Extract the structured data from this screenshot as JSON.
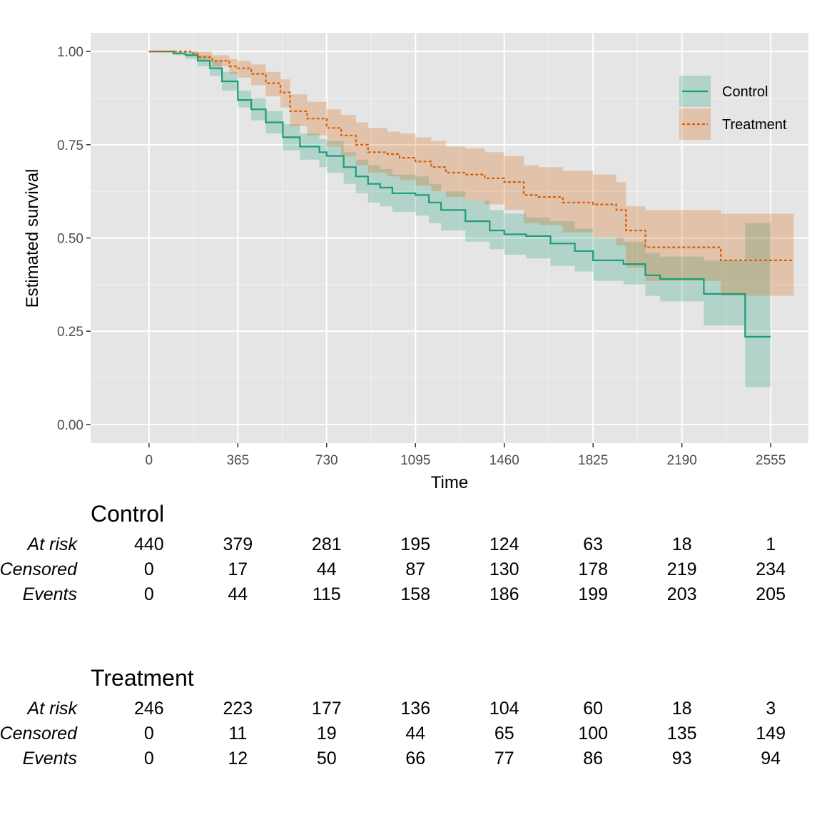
{
  "chart_data": {
    "type": "line",
    "title": "",
    "xlabel": "Time",
    "ylabel": "Estimated survival",
    "xlim": [
      -240,
      2710
    ],
    "ylim": [
      -0.05,
      1.05
    ],
    "x_ticks": [
      0,
      365,
      730,
      1095,
      1460,
      1825,
      2190,
      2555
    ],
    "x_tick_labels": [
      "0",
      "365",
      "730",
      "1095",
      "1460",
      "1825",
      "2190",
      "2555"
    ],
    "y_ticks": [
      0,
      0.25,
      0.5,
      0.75,
      1
    ],
    "y_tick_labels": [
      "0.00",
      "0.25",
      "0.50",
      "0.75",
      "1.00"
    ],
    "grid": true,
    "legend_position": "top-right",
    "series": [
      {
        "name": "Control",
        "color": "#1b9e77",
        "line_style": "solid",
        "x": [
          0,
          50,
          100,
          150,
          200,
          250,
          300,
          365,
          420,
          480,
          550,
          620,
          700,
          730,
          800,
          850,
          900,
          950,
          1000,
          1095,
          1150,
          1200,
          1300,
          1400,
          1460,
          1550,
          1650,
          1750,
          1825,
          1950,
          2040,
          2100,
          2190,
          2280,
          2450,
          2555
        ],
        "y": [
          1.0,
          1.0,
          0.995,
          0.99,
          0.975,
          0.955,
          0.92,
          0.87,
          0.845,
          0.81,
          0.77,
          0.745,
          0.73,
          0.72,
          0.69,
          0.665,
          0.645,
          0.635,
          0.62,
          0.615,
          0.595,
          0.575,
          0.545,
          0.52,
          0.51,
          0.505,
          0.485,
          0.465,
          0.44,
          0.43,
          0.4,
          0.39,
          0.39,
          0.35,
          0.235,
          0.235
        ],
        "lower": [
          1.0,
          1.0,
          0.99,
          0.98,
          0.96,
          0.935,
          0.895,
          0.85,
          0.815,
          0.78,
          0.735,
          0.71,
          0.69,
          0.675,
          0.645,
          0.62,
          0.595,
          0.585,
          0.57,
          0.56,
          0.54,
          0.52,
          0.49,
          0.47,
          0.455,
          0.445,
          0.425,
          0.41,
          0.385,
          0.375,
          0.345,
          0.33,
          0.33,
          0.265,
          0.1,
          0.1
        ],
        "upper": [
          1.0,
          1.0,
          1.0,
          1.0,
          0.99,
          0.975,
          0.945,
          0.895,
          0.875,
          0.84,
          0.805,
          0.78,
          0.765,
          0.76,
          0.73,
          0.71,
          0.695,
          0.685,
          0.67,
          0.665,
          0.645,
          0.625,
          0.6,
          0.575,
          0.565,
          0.555,
          0.545,
          0.525,
          0.5,
          0.49,
          0.46,
          0.45,
          0.45,
          0.44,
          0.54,
          0.54
        ]
      },
      {
        "name": "Treatment",
        "color": "#d95f02",
        "line_style": "dashed",
        "x": [
          0,
          100,
          170,
          200,
          260,
          330,
          365,
          420,
          480,
          540,
          580,
          650,
          730,
          790,
          850,
          900,
          980,
          1030,
          1095,
          1160,
          1220,
          1300,
          1380,
          1460,
          1540,
          1600,
          1700,
          1825,
          1920,
          1960,
          2040,
          2190,
          2350,
          2555,
          2650
        ],
        "y": [
          1.0,
          1.0,
          0.995,
          0.985,
          0.975,
          0.96,
          0.955,
          0.94,
          0.915,
          0.89,
          0.84,
          0.82,
          0.795,
          0.775,
          0.75,
          0.73,
          0.725,
          0.715,
          0.705,
          0.69,
          0.675,
          0.67,
          0.66,
          0.65,
          0.615,
          0.61,
          0.595,
          0.59,
          0.575,
          0.52,
          0.475,
          0.475,
          0.44,
          0.44,
          0.44
        ],
        "lower": [
          1.0,
          1.0,
          0.99,
          0.975,
          0.96,
          0.94,
          0.93,
          0.91,
          0.88,
          0.85,
          0.8,
          0.775,
          0.745,
          0.72,
          0.695,
          0.675,
          0.665,
          0.655,
          0.64,
          0.625,
          0.61,
          0.6,
          0.59,
          0.575,
          0.54,
          0.535,
          0.515,
          0.5,
          0.48,
          0.42,
          0.385,
          0.385,
          0.345,
          0.345,
          0.345
        ],
        "upper": [
          1.0,
          1.0,
          1.0,
          1.0,
          0.99,
          0.98,
          0.975,
          0.965,
          0.945,
          0.925,
          0.885,
          0.865,
          0.845,
          0.83,
          0.81,
          0.795,
          0.785,
          0.78,
          0.77,
          0.76,
          0.745,
          0.74,
          0.73,
          0.72,
          0.695,
          0.69,
          0.68,
          0.67,
          0.65,
          0.585,
          0.575,
          0.575,
          0.565,
          0.565,
          0.565
        ]
      }
    ]
  },
  "risk_tables": [
    {
      "title": "Control",
      "rows": [
        {
          "label": "At risk",
          "values": [
            "440",
            "379",
            "281",
            "195",
            "124",
            "63",
            "18",
            "1"
          ]
        },
        {
          "label": "Censored",
          "values": [
            "0",
            "17",
            "44",
            "87",
            "130",
            "178",
            "219",
            "234"
          ]
        },
        {
          "label": "Events",
          "values": [
            "0",
            "44",
            "115",
            "158",
            "186",
            "199",
            "203",
            "205"
          ]
        }
      ]
    },
    {
      "title": "Treatment",
      "rows": [
        {
          "label": "At risk",
          "values": [
            "246",
            "223",
            "177",
            "136",
            "104",
            "60",
            "18",
            "3"
          ]
        },
        {
          "label": "Censored",
          "values": [
            "0",
            "11",
            "19",
            "44",
            "65",
            "100",
            "135",
            "149"
          ]
        },
        {
          "label": "Events",
          "values": [
            "0",
            "12",
            "50",
            "66",
            "77",
            "86",
            "93",
            "94"
          ]
        }
      ]
    }
  ],
  "colors": {
    "panel_background": "#e5e5e5",
    "grid": "#ffffff",
    "control": "#1b9e77",
    "treatment": "#d95f02"
  }
}
